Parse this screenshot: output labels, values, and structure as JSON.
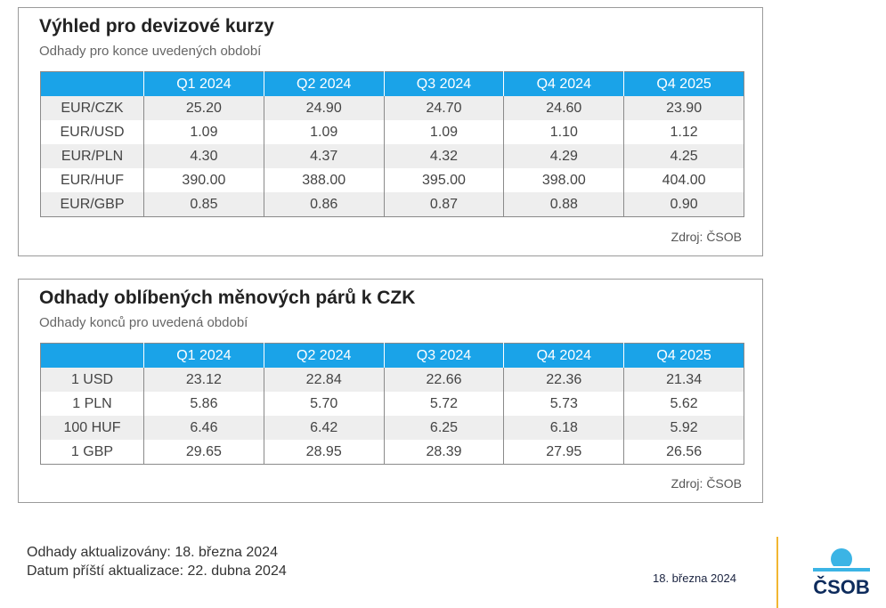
{
  "tables": [
    {
      "title": "Výhled pro devizové kurzy",
      "subtitle": "Odhady pro konce uvedených období",
      "columns": [
        "Q1 2024",
        "Q2 2024",
        "Q3 2024",
        "Q4 2024",
        "Q4 2025"
      ],
      "rows": [
        [
          "EUR/CZK",
          "25.20",
          "24.90",
          "24.70",
          "24.60",
          "23.90"
        ],
        [
          "EUR/USD",
          "1.09",
          "1.09",
          "1.09",
          "1.10",
          "1.12"
        ],
        [
          "EUR/PLN",
          "4.30",
          "4.37",
          "4.32",
          "4.29",
          "4.25"
        ],
        [
          "EUR/HUF",
          "390.00",
          "388.00",
          "395.00",
          "398.00",
          "404.00"
        ],
        [
          "EUR/GBP",
          "0.85",
          "0.86",
          "0.87",
          "0.88",
          "0.90"
        ]
      ],
      "source": "Zdroj: ČSOB"
    },
    {
      "title": "Odhady oblíbených měnových párů k CZK",
      "subtitle": "Odhady konců pro uvedená období",
      "columns": [
        "Q1 2024",
        "Q2 2024",
        "Q3 2024",
        "Q4 2024",
        "Q4 2025"
      ],
      "rows": [
        [
          "1 USD",
          "23.12",
          "22.84",
          "22.66",
          "22.36",
          "21.34"
        ],
        [
          "1 PLN",
          "5.86",
          "5.70",
          "5.72",
          "5.73",
          "5.62"
        ],
        [
          "100 HUF",
          "6.46",
          "6.42",
          "6.25",
          "6.18",
          "5.92"
        ],
        [
          "1 GBP",
          "29.65",
          "28.95",
          "28.39",
          "27.95",
          "26.56"
        ]
      ],
      "source": "Zdroj: ČSOB"
    }
  ],
  "footer": {
    "updated": "Odhady aktualizovány: 18. března 2024",
    "next_update": "Datum příští aktualizace: 22. dubna 2024",
    "date": "18. března 2024",
    "logo": "ČSOB"
  }
}
